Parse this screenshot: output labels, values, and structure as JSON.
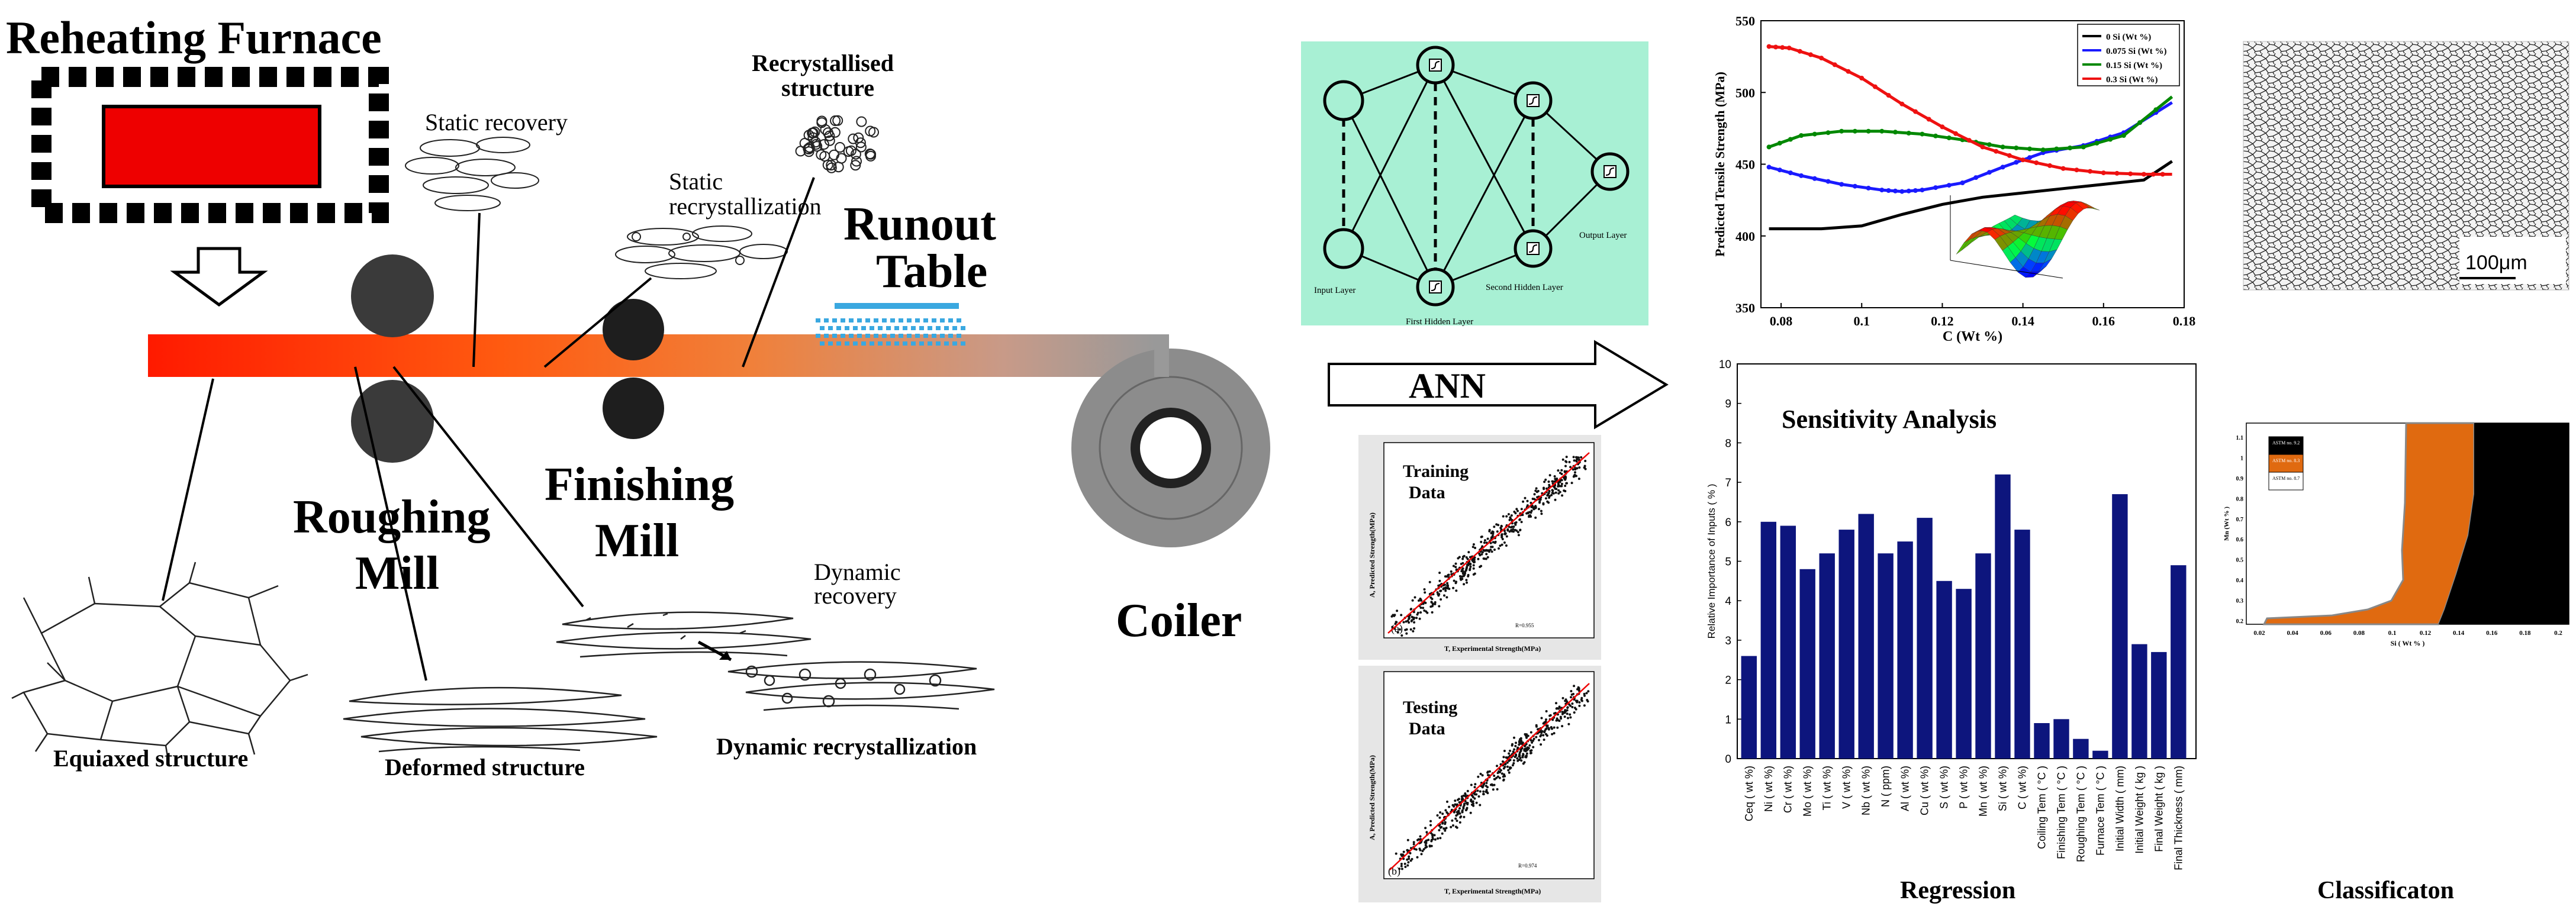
{
  "process": {
    "reheating_furnace": "Reheating Furnace",
    "static_recovery": "Static recovery",
    "recrystallised_line1": "Recrystallised",
    "recrystallised_line2": "structure",
    "static_recryst_line1": "Static",
    "static_recryst_line2": "recrystallization",
    "runout_line1": "Runout",
    "runout_line2": "Table",
    "roughing_line1": "Roughing",
    "roughing_line2": "Mill",
    "finishing_line1": "Finishing",
    "finishing_line2": "Mill",
    "coiler": "Coiler",
    "dynamic_recovery_line1": "Dynamic",
    "dynamic_recovery_line2": "recovery",
    "equiaxed": "Equiaxed structure",
    "deformed": "Deformed structure",
    "dynamic_recryst": "Dynamic recrystallization"
  },
  "ann": {
    "arrow_label": "ANN",
    "input_layer": "Input Layer",
    "first_hidden": "First Hidden Layer",
    "second_hidden": "Second Hidden Layer",
    "output_layer": "Output Layer",
    "colors": {
      "background": "#a8f0d4"
    }
  },
  "scatter_plots": [
    {
      "label": "Training\nData",
      "tag": "(a)",
      "xlabel": "T, Experimental Strength(MPa)",
      "ylabel": "A, Predicted Strength(MPa)",
      "r": "R=0.955"
    },
    {
      "label": "Testing\nData",
      "tag": "(b)",
      "xlabel": "T, Experimental Strength(MPa)",
      "ylabel": "A, Predicted Strength(MPa)",
      "r": "R=0.974"
    }
  ],
  "micrograph": {
    "scale_label": "100μm"
  },
  "footer": {
    "regression": "Regression",
    "classification": "Classificaton"
  },
  "chart_data": [
    {
      "type": "line",
      "title": "",
      "xlabel": "C (Wt %)",
      "ylabel": "Predicted Tensile Strength (MPa)",
      "xlim": [
        0.075,
        0.18
      ],
      "ylim": [
        350,
        550
      ],
      "xticks": [
        "0.08",
        "0.1",
        "0.12",
        "0.14",
        "0.16",
        "0.18"
      ],
      "yticks": [
        "350",
        "400",
        "450",
        "500",
        "550"
      ],
      "legend_position": "top-right",
      "series": [
        {
          "name": "0      Si (Wt %)",
          "color": "#000000",
          "x": [
            0.077,
            0.09,
            0.1,
            0.11,
            0.12,
            0.13,
            0.14,
            0.15,
            0.16,
            0.17,
            0.177
          ],
          "y": [
            405,
            405,
            407,
            415,
            422,
            427,
            430,
            433,
            436,
            439,
            452
          ]
        },
        {
          "name": "0.075 Si (Wt %)",
          "color": "#1a1aff",
          "x": [
            0.077,
            0.085,
            0.095,
            0.105,
            0.11,
            0.115,
            0.125,
            0.135,
            0.145,
            0.155,
            0.165,
            0.177
          ],
          "y": [
            448,
            442,
            436,
            432,
            431,
            432,
            437,
            448,
            458,
            463,
            472,
            493
          ]
        },
        {
          "name": "0.15 Si (Wt %)",
          "color": "#008800",
          "x": [
            0.077,
            0.085,
            0.095,
            0.105,
            0.115,
            0.125,
            0.135,
            0.145,
            0.155,
            0.165,
            0.177
          ],
          "y": [
            462,
            470,
            473,
            473,
            471,
            467,
            462,
            460,
            462,
            470,
            497
          ]
        },
        {
          "name": "0.3    Si (Wt %)",
          "color": "#ee1111",
          "x": [
            0.077,
            0.082,
            0.09,
            0.1,
            0.11,
            0.12,
            0.13,
            0.14,
            0.15,
            0.16,
            0.17,
            0.177
          ],
          "y": [
            532,
            531,
            524,
            510,
            492,
            476,
            462,
            453,
            447,
            444,
            443,
            443
          ]
        }
      ]
    },
    {
      "type": "bar",
      "title": "Sensitivity Analysis",
      "xlabel": "",
      "ylabel": "Relative Importance of Inputs ( % )",
      "ylim": [
        0,
        10
      ],
      "yticks": [
        "0",
        "1",
        "2",
        "3",
        "4",
        "5",
        "6",
        "7",
        "8",
        "9",
        "10"
      ],
      "color": "#0d157d",
      "categories": [
        "Ceq ( wt %)",
        "Ni ( wt %)",
        "Cr ( wt %)",
        "Mo ( wt %)",
        "Ti ( wt %)",
        "V ( wt %)",
        "Nb ( wt %)",
        "N ( ppm)",
        "Al ( wt %)",
        "Cu ( wt %)",
        "S ( wt %)",
        "P ( wt %)",
        "Mn ( wt %)",
        "Si ( wt %)",
        "C ( wt %)",
        "Coiling Tem ( °C )",
        "Finishing Tem ( °C )",
        "Roughing Tem ( °C )",
        "Furnace Tem ( °C )",
        "Initial Width ( mm)",
        "Initial Weight ( kg )",
        "Final Weight ( kg )",
        "Final Thickness ( mm)"
      ],
      "values": [
        2.6,
        6.0,
        5.9,
        4.8,
        5.2,
        5.8,
        6.2,
        5.2,
        5.5,
        6.1,
        4.5,
        4.3,
        5.2,
        7.2,
        5.8,
        0.9,
        1.0,
        0.5,
        0.2,
        6.7,
        2.9,
        2.7,
        4.9
      ]
    }
  ],
  "classification": {
    "xlabel": "Si ( Wt % )",
    "ylabel": "Mn (Wt % )",
    "xticks": [
      "0.02",
      "0.04",
      "0.06",
      "0.08",
      "0.1",
      "0.12",
      "0.14",
      "0.16",
      "0.18",
      "0.2"
    ],
    "yticks": [
      "0.2",
      "0.3",
      "0.4",
      "0.5",
      "0.6",
      "0.7",
      "0.8",
      "0.9",
      "1",
      "1.1"
    ],
    "legend": [
      "ASTM no. 9.2",
      "ASTM no. 8.3",
      "ASTM no. 8.7"
    ],
    "colors": {
      "white": "#ffffff",
      "orange": "#e06a10",
      "black": "#000000"
    }
  }
}
